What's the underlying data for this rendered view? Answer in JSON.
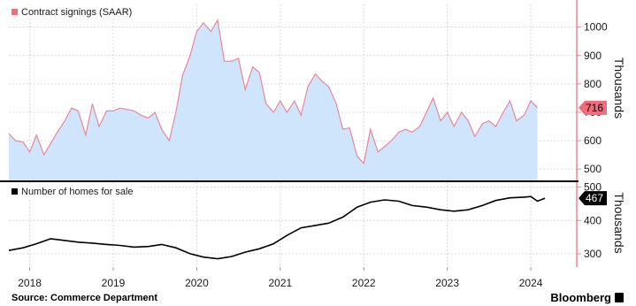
{
  "colors": {
    "signings_fill": "#cfe5fb",
    "signings_line": "#e8889a",
    "signings_badge": "#f26c7b",
    "homes_line": "#000000",
    "homes_badge": "#000000",
    "axis": "#e8889a",
    "grid": "#d9d9d9"
  },
  "source": "Source: Commerce Department",
  "brand": "Bloomberg",
  "chart_data": [
    {
      "type": "area",
      "legend": "Contract signings (SAAR)",
      "unit_label": "Thousands",
      "last_value_label": "716",
      "ylim": [
        460,
        1080
      ],
      "yticks": [
        500,
        600,
        700,
        800,
        900,
        1000
      ],
      "grid": true,
      "legend_position": "top-left",
      "x_start": 2017.75,
      "x_end": 2024.55,
      "series": [
        {
          "points": [
            [
              2017.75,
              625
            ],
            [
              2017.83,
              600
            ],
            [
              2017.92,
              595
            ],
            [
              2018.0,
              560
            ],
            [
              2018.08,
              620
            ],
            [
              2018.17,
              550
            ],
            [
              2018.25,
              590
            ],
            [
              2018.33,
              630
            ],
            [
              2018.42,
              670
            ],
            [
              2018.5,
              715
            ],
            [
              2018.58,
              705
            ],
            [
              2018.67,
              620
            ],
            [
              2018.75,
              730
            ],
            [
              2018.83,
              650
            ],
            [
              2018.92,
              705
            ],
            [
              2019.0,
              705
            ],
            [
              2019.08,
              715
            ],
            [
              2019.17,
              710
            ],
            [
              2019.25,
              705
            ],
            [
              2019.33,
              690
            ],
            [
              2019.42,
              680
            ],
            [
              2019.5,
              700
            ],
            [
              2019.58,
              640
            ],
            [
              2019.67,
              600
            ],
            [
              2019.75,
              700
            ],
            [
              2019.83,
              830
            ],
            [
              2019.92,
              900
            ],
            [
              2020.0,
              985
            ],
            [
              2020.08,
              1015
            ],
            [
              2020.17,
              985
            ],
            [
              2020.25,
              1025
            ],
            [
              2020.33,
              880
            ],
            [
              2020.42,
              880
            ],
            [
              2020.5,
              890
            ],
            [
              2020.58,
              780
            ],
            [
              2020.67,
              860
            ],
            [
              2020.75,
              840
            ],
            [
              2020.83,
              730
            ],
            [
              2020.92,
              700
            ],
            [
              2021.0,
              740
            ],
            [
              2021.08,
              700
            ],
            [
              2021.17,
              740
            ],
            [
              2021.25,
              690
            ],
            [
              2021.33,
              790
            ],
            [
              2021.42,
              835
            ],
            [
              2021.5,
              810
            ],
            [
              2021.58,
              790
            ],
            [
              2021.67,
              730
            ],
            [
              2021.75,
              640
            ],
            [
              2021.83,
              645
            ],
            [
              2021.92,
              545
            ],
            [
              2022.0,
              520
            ],
            [
              2022.08,
              640
            ],
            [
              2022.17,
              560
            ],
            [
              2022.25,
              580
            ],
            [
              2022.33,
              600
            ],
            [
              2022.42,
              630
            ],
            [
              2022.5,
              640
            ],
            [
              2022.58,
              630
            ],
            [
              2022.67,
              650
            ],
            [
              2022.75,
              700
            ],
            [
              2022.83,
              750
            ],
            [
              2022.92,
              670
            ],
            [
              2023.0,
              700
            ],
            [
              2023.08,
              650
            ],
            [
              2023.17,
              700
            ],
            [
              2023.25,
              670
            ],
            [
              2023.33,
              615
            ],
            [
              2023.42,
              660
            ],
            [
              2023.5,
              670
            ],
            [
              2023.58,
              650
            ],
            [
              2023.67,
              700
            ],
            [
              2023.75,
              740
            ],
            [
              2023.83,
              670
            ],
            [
              2023.92,
              690
            ],
            [
              2024.0,
              740
            ],
            [
              2024.08,
              716
            ]
          ]
        }
      ]
    },
    {
      "type": "line",
      "legend": "Number of homes for sale",
      "unit_label": "Thousands",
      "last_value_label": "467",
      "ylim": [
        260,
        515
      ],
      "yticks": [
        300,
        400,
        500
      ],
      "grid": true,
      "legend_position": "top-left",
      "x_start": 2017.75,
      "x_end": 2024.55,
      "x_tick_labels": [
        "2018",
        "2019",
        "2020",
        "2021",
        "2022",
        "2023",
        "2024"
      ],
      "x_tick_years": [
        2018,
        2019,
        2020,
        2021,
        2022,
        2023,
        2024
      ],
      "series": [
        {
          "points": [
            [
              2017.75,
              310
            ],
            [
              2017.92,
              318
            ],
            [
              2018.08,
              330
            ],
            [
              2018.25,
              345
            ],
            [
              2018.42,
              340
            ],
            [
              2018.58,
              335
            ],
            [
              2018.75,
              332
            ],
            [
              2018.92,
              328
            ],
            [
              2019.08,
              325
            ],
            [
              2019.25,
              320
            ],
            [
              2019.42,
              322
            ],
            [
              2019.58,
              328
            ],
            [
              2019.75,
              318
            ],
            [
              2019.92,
              300
            ],
            [
              2020.08,
              290
            ],
            [
              2020.25,
              285
            ],
            [
              2020.42,
              292
            ],
            [
              2020.58,
              305
            ],
            [
              2020.75,
              315
            ],
            [
              2020.92,
              330
            ],
            [
              2021.08,
              355
            ],
            [
              2021.25,
              378
            ],
            [
              2021.42,
              385
            ],
            [
              2021.58,
              392
            ],
            [
              2021.75,
              410
            ],
            [
              2021.92,
              440
            ],
            [
              2022.08,
              455
            ],
            [
              2022.25,
              462
            ],
            [
              2022.42,
              458
            ],
            [
              2022.58,
              445
            ],
            [
              2022.75,
              440
            ],
            [
              2022.92,
              432
            ],
            [
              2023.08,
              428
            ],
            [
              2023.25,
              432
            ],
            [
              2023.42,
              445
            ],
            [
              2023.58,
              460
            ],
            [
              2023.75,
              468
            ],
            [
              2023.92,
              470
            ],
            [
              2024.0,
              472
            ],
            [
              2024.08,
              458
            ],
            [
              2024.17,
              467
            ]
          ]
        }
      ]
    }
  ]
}
